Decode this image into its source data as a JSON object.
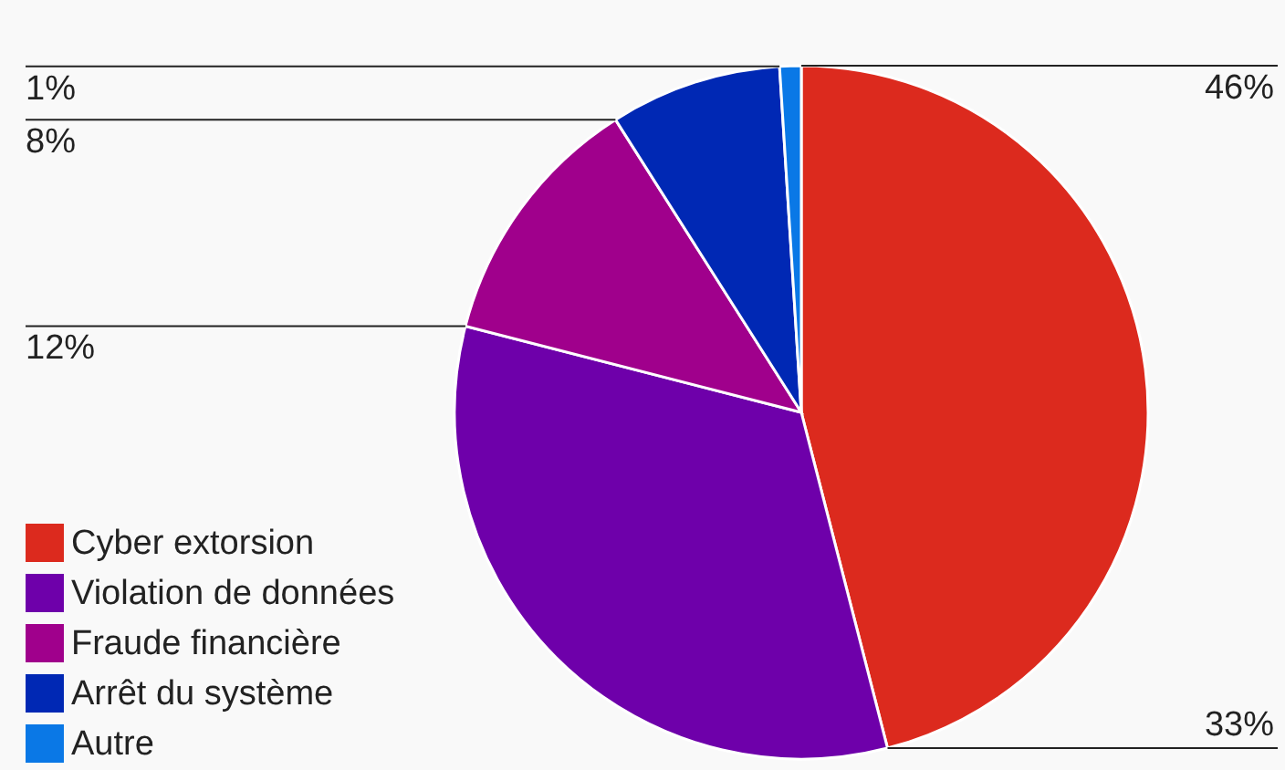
{
  "chart_data": {
    "type": "pie",
    "categories": [
      "Cyber extorsion",
      "Violation de données",
      "Fraude financière",
      "Arrêt du système",
      "Autre"
    ],
    "values": [
      46,
      33,
      12,
      8,
      1
    ],
    "colors": [
      "#dc2a1e",
      "#6e00aa",
      "#a0008c",
      "#0028b4",
      "#0a78e6"
    ],
    "value_labels": [
      "46%",
      "33%",
      "12%",
      "8%",
      "1%"
    ],
    "legend": "bottom left"
  }
}
